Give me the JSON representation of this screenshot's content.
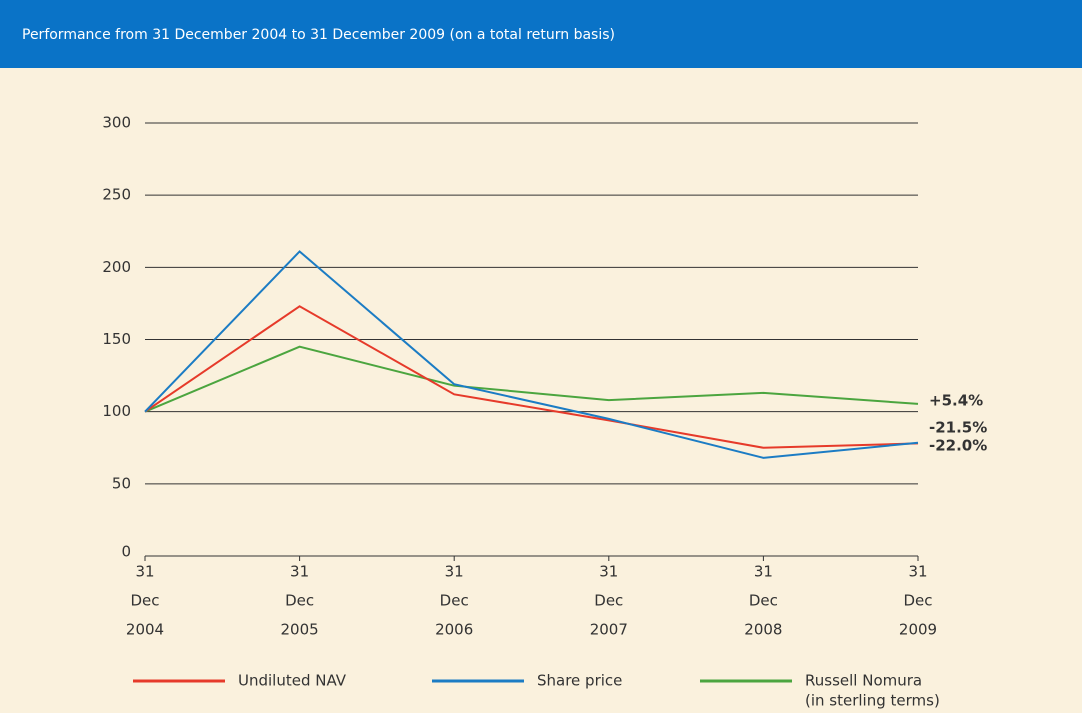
{
  "chart_data": {
    "type": "line",
    "title": "Performance from 31 December 2004 to 31 December 2009 (on a total return basis)",
    "categories": [
      [
        "31",
        "Dec",
        "2004"
      ],
      [
        "31",
        "Dec",
        "2005"
      ],
      [
        "31",
        "Dec",
        "2006"
      ],
      [
        "31",
        "Dec",
        "2007"
      ],
      [
        "31",
        "Dec",
        "2008"
      ],
      [
        "31",
        "Dec",
        "2009"
      ]
    ],
    "series": [
      {
        "name": "Undiluted NAV",
        "color": "#e63a2a",
        "values": [
          100,
          173,
          112,
          94,
          75,
          78
        ],
        "end_label": "-22.0%"
      },
      {
        "name": "Share price",
        "color": "#1b7cc4",
        "values": [
          100,
          211,
          119,
          95,
          68,
          78.5
        ],
        "end_label": "-21.5%"
      },
      {
        "name": "Russell Nomura",
        "legend_note": "(in sterling terms)",
        "color": "#4ba53f",
        "values": [
          100,
          145,
          118,
          108,
          113,
          105.4
        ],
        "end_label": "+5.4%"
      }
    ],
    "ylim": [
      0,
      300
    ],
    "yticks": [
      0,
      50,
      100,
      150,
      200,
      250,
      300
    ],
    "grid": true
  }
}
